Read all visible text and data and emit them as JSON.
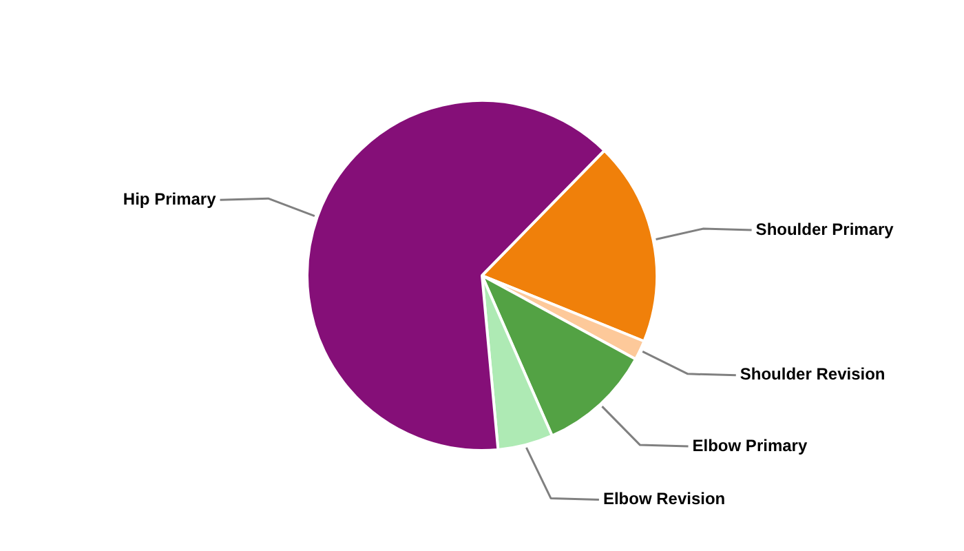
{
  "chart_data": {
    "type": "pie",
    "categories": [
      "Shoulder Primary",
      "Shoulder Revision",
      "Elbow Primary",
      "Elbow Revision",
      "Hip Primary"
    ],
    "values": [
      18.8,
      1.8,
      10.5,
      5.1,
      63.8
    ],
    "colors": [
      "#f0800a",
      "#fdc99a",
      "#53a244",
      "#aeeab4",
      "#850f78"
    ],
    "legend": false
  }
}
